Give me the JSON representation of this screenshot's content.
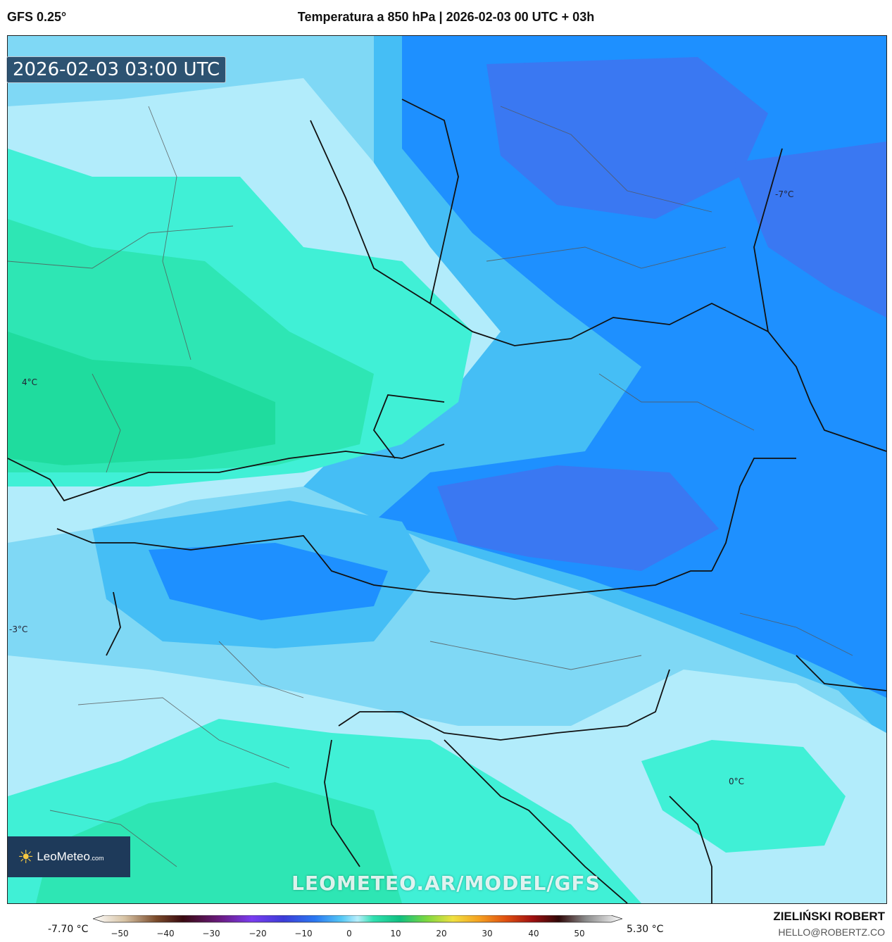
{
  "header": {
    "model": "GFS 0.25°",
    "title": "Temperatura a 850 hPa | 2026-02-03 00 UTC + 03h"
  },
  "map": {
    "valid_time": "2026-02-03 03:00 UTC",
    "isotherm_labels": [
      "4°C",
      "-7°C",
      "-3°C",
      "0°C"
    ],
    "watermark": "LEOMETEO.AR/MODEL/GFS",
    "logo": {
      "brand": "LeoMeteo",
      "suffix": ".com"
    },
    "palette": {
      "warm_4": "#1fdc9e",
      "warm_2": "#40f0d6",
      "zero": "#b2ecfb",
      "cold_2": "#7fd8f5",
      "cold_4": "#45bef5",
      "cold_6": "#1e90ff",
      "cold_7": "#3a78f2"
    }
  },
  "legend": {
    "min_value": "-7.70 °C",
    "max_value": "5.30 °C",
    "ticks": [
      "−50",
      "−40",
      "−30",
      "−20",
      "−10",
      "0",
      "10",
      "20",
      "30",
      "40",
      "50"
    ]
  },
  "author": {
    "name": "ZIELIŃSKI ROBERT",
    "email": "HELLO@ROBERTZ.CO"
  }
}
